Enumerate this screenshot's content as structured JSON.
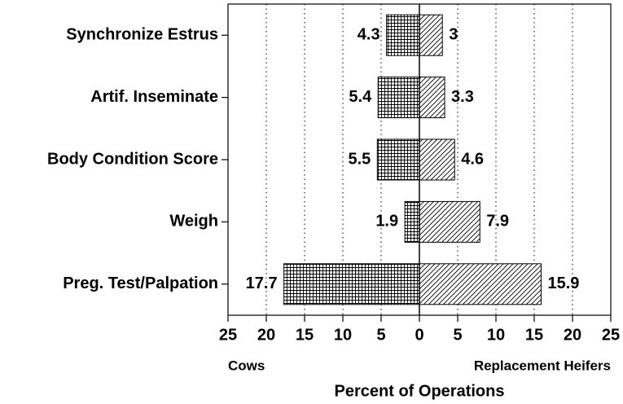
{
  "chart_data": {
    "type": "diverging-bar",
    "categories": [
      "Synchronize Estrus",
      "Artif. Inseminate",
      "Body Condition Score",
      "Weigh",
      "Preg. Test/Palpation"
    ],
    "series": [
      {
        "name": "Cows",
        "color": "#000000",
        "values": [
          -4.3,
          -5.4,
          -5.5,
          -1.9,
          -17.7
        ],
        "value_labels": [
          "4.3",
          "5.4",
          "5.5",
          "1.9",
          "17.7"
        ]
      },
      {
        "name": "Replacement Heifers",
        "color": "#000000",
        "values": [
          3,
          3.3,
          4.6,
          7.9,
          15.9
        ]
      }
    ],
    "xlabel": "Percent of Operations",
    "xlim": [
      -25,
      25
    ],
    "xticks": [
      {
        "value": -25,
        "label": "25"
      },
      {
        "value": -20,
        "label": "20"
      },
      {
        "value": -15,
        "label": "15"
      },
      {
        "value": -10,
        "label": "10"
      },
      {
        "value": -5,
        "label": "5"
      },
      0,
      5,
      10,
      15,
      20,
      25
    ],
    "grid": true
  }
}
